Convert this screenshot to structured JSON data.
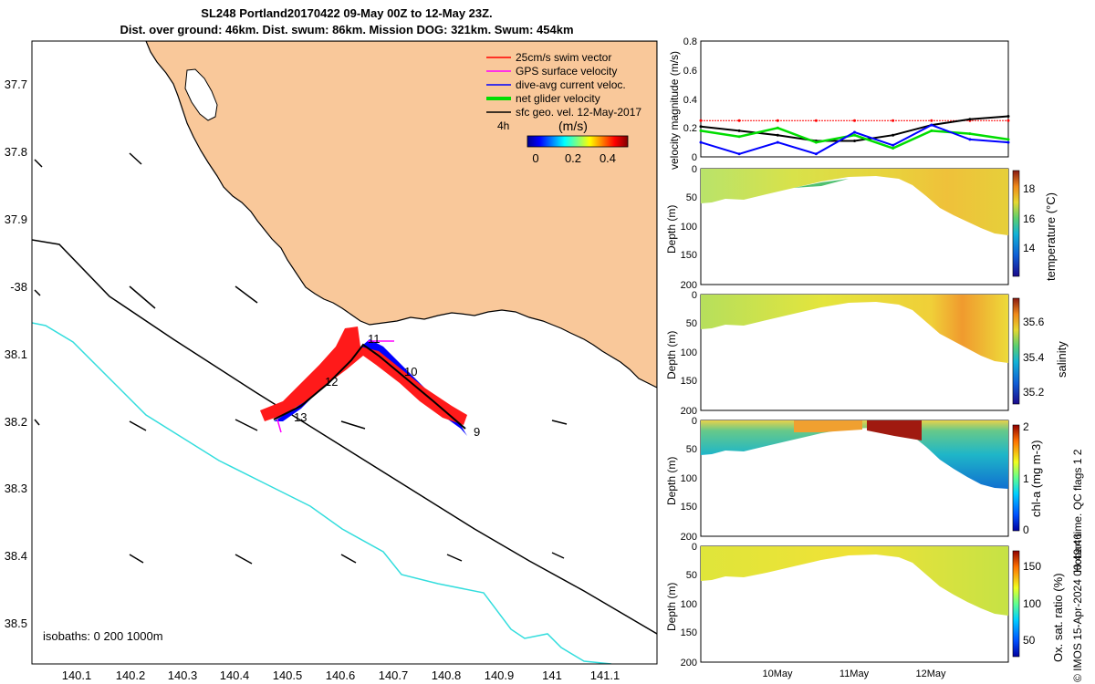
{
  "title": {
    "line1": "SL248 Portland20170422 09-May 00Z to 12-May 23Z.",
    "line2": "Dist. over ground: 46km. Dist. swum: 86km. Mission DOG: 321km. Swum: 454km"
  },
  "map": {
    "lat_ticks": [
      "37.7",
      "37.8",
      "37.9",
      "-38",
      "38.1",
      "38.2",
      "38.3",
      "38.4",
      "38.5"
    ],
    "lon_ticks": [
      "140.1",
      "140.2",
      "140.3",
      "140.4",
      "140.5",
      "140.6",
      "140.7",
      "140.8",
      "140.9",
      "141",
      "141.1"
    ],
    "legend": [
      {
        "label": "25cm/s swim vector",
        "color": "#ff0000"
      },
      {
        "label": "GPS surface velocity",
        "color": "#ff00ff"
      },
      {
        "label": "dive-avg current veloc.",
        "color": "#0000ff"
      },
      {
        "label": "net glider velocity",
        "color": "#00dd00"
      },
      {
        "label": "sfc geo. vel. 12-May-2017",
        "color": "#000000"
      }
    ],
    "colorbar": {
      "title": "(m/s)",
      "side_label": "4h",
      "ticks": [
        "0",
        "0.2",
        "0.4"
      ]
    },
    "day_labels": [
      "9",
      "10",
      "11",
      "12",
      "13"
    ],
    "isobath_label": "isobaths: 0   200  1000m",
    "colors": {
      "land": "#f9c89a",
      "coast": "#000000",
      "isobath_200": "#000000",
      "isobath_1000": "#33dddd"
    }
  },
  "panels": {
    "velocity": {
      "ylabel": "velocity magnitude (m/s)",
      "yticks": [
        "0",
        "0.2",
        "0.4",
        "0.6",
        "0.8"
      ]
    },
    "depth_ticks": [
      "0",
      "50",
      "100",
      "150",
      "200"
    ],
    "depth_label": "Depth (m)",
    "temperature": {
      "clabel": "temperature (°C)",
      "cticks": [
        "18",
        "16",
        "14"
      ]
    },
    "salinity": {
      "clabel": "salinity",
      "cticks": [
        "35.6",
        "35.4",
        "35.2"
      ]
    },
    "chla": {
      "clabel": "chl-a (mg m-3)",
      "cticks": [
        "2",
        "1",
        "0"
      ]
    },
    "oxygen": {
      "clabel": "Ox. sat. ratio (%)",
      "cticks": [
        "150",
        "100",
        "50"
      ]
    },
    "xticks": [
      "10May",
      "11May",
      "12May"
    ]
  },
  "footer": {
    "qc": "Hobart time. QC flags 1  2",
    "imos": "© IMOS 15-Apr-2024 00:49:46"
  },
  "chart_data": [
    {
      "type": "line",
      "title": "",
      "ylabel": "velocity magnitude (m/s)",
      "ylim": [
        0,
        0.8
      ],
      "x_tick_labels": [
        "10May",
        "11May",
        "12May"
      ],
      "x": [
        "09-May 00:00",
        "09-May 12:00",
        "10-May 00:00",
        "10-May 12:00",
        "11-May 00:00",
        "11-May 12:00",
        "12-May 00:00",
        "12-May 12:00",
        "12-May 23:00"
      ],
      "series": [
        {
          "name": "swim speed (red)",
          "color": "#ff0000",
          "values": [
            0.25,
            0.25,
            0.25,
            0.25,
            0.25,
            0.25,
            0.25,
            0.25,
            0.25
          ]
        },
        {
          "name": "sfc geo. vel. (black)",
          "color": "#000000",
          "values": [
            0.21,
            0.18,
            0.15,
            0.11,
            0.11,
            0.15,
            0.22,
            0.26,
            0.28
          ]
        },
        {
          "name": "net glider velocity (green)",
          "color": "#00dd00",
          "values": [
            0.18,
            0.14,
            0.2,
            0.1,
            0.15,
            0.06,
            0.18,
            0.16,
            0.12
          ]
        },
        {
          "name": "dive-avg current (blue)",
          "color": "#0000ff",
          "values": [
            0.1,
            0.02,
            0.1,
            0.02,
            0.17,
            0.08,
            0.22,
            0.12,
            0.1
          ]
        }
      ]
    },
    {
      "type": "heatmap",
      "ylabel": "Depth (m)",
      "clabel": "temperature (°C)",
      "ylim": [
        200,
        0
      ],
      "clim": [
        12.5,
        19
      ],
      "description_values": {
        "near_surface_range": [
          16,
          17.5
        ],
        "deep_max_c": 18,
        "max_depth_m": [
          40,
          120
        ]
      }
    },
    {
      "type": "heatmap",
      "ylabel": "Depth (m)",
      "clabel": "salinity",
      "ylim": [
        200,
        0
      ],
      "clim": [
        35.15,
        35.7
      ]
    },
    {
      "type": "heatmap",
      "ylabel": "Depth (m)",
      "clabel": "chl-a (mg m-3)",
      "ylim": [
        200,
        0
      ],
      "clim": [
        0,
        2
      ]
    },
    {
      "type": "heatmap",
      "ylabel": "Depth (m)",
      "clabel": "Ox. sat. ratio (%)",
      "ylim": [
        200,
        0
      ],
      "clim": [
        20,
        175
      ]
    }
  ]
}
